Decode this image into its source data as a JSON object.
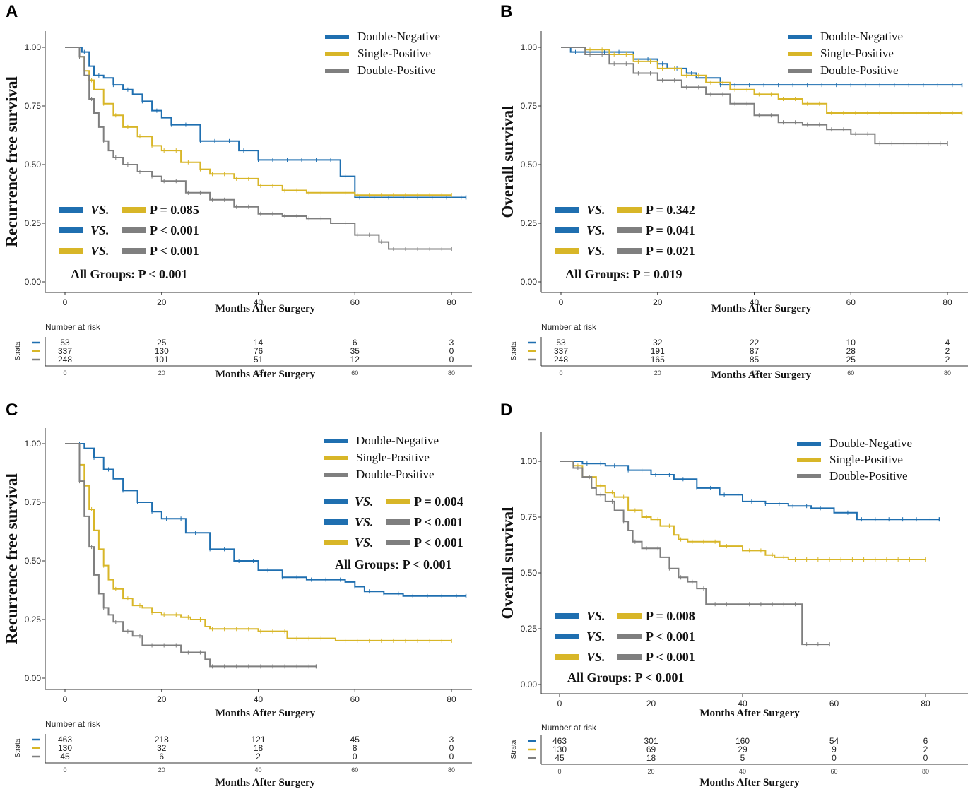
{
  "colors": {
    "double_negative": "#1f6fb0",
    "single_positive": "#d8b628",
    "double_positive": "#7f7f7f",
    "axis": "#333333",
    "text": "#111111"
  },
  "chart_data": [
    {
      "panel": "A",
      "type": "line",
      "subtype": "kaplan-meier",
      "ylabel": "Recurrence free survival",
      "xlabel": "Months After Surgery",
      "xlim": [
        0,
        83
      ],
      "ylim": [
        0,
        1
      ],
      "x_ticks": [
        "0",
        "20",
        "40",
        "60",
        "80"
      ],
      "y_ticks": [
        "0.00",
        "0.25",
        "0.50",
        "0.75",
        "1.00"
      ],
      "legend": [
        "Double-Negative",
        "Single-Positive",
        "Double-Positive"
      ],
      "series": [
        {
          "name": "Double-Negative",
          "x": [
            0,
            3,
            3.5,
            5,
            6,
            8,
            10,
            12,
            14,
            16,
            18,
            20,
            22,
            24,
            28,
            34,
            36,
            40,
            44,
            55,
            57,
            60,
            83
          ],
          "y": [
            1,
            1,
            0.98,
            0.92,
            0.88,
            0.87,
            0.84,
            0.82,
            0.8,
            0.77,
            0.73,
            0.7,
            0.67,
            0.67,
            0.6,
            0.6,
            0.56,
            0.52,
            0.52,
            0.52,
            0.45,
            0.36,
            0.36
          ]
        },
        {
          "name": "Single-Positive",
          "x": [
            0,
            2,
            3,
            4,
            5,
            6,
            8,
            10,
            12,
            15,
            18,
            20,
            24,
            28,
            30,
            35,
            40,
            45,
            50,
            55,
            60,
            80
          ],
          "y": [
            1,
            1,
            0.96,
            0.9,
            0.86,
            0.82,
            0.76,
            0.71,
            0.66,
            0.62,
            0.58,
            0.56,
            0.51,
            0.48,
            0.46,
            0.44,
            0.41,
            0.39,
            0.38,
            0.38,
            0.37,
            0.37
          ]
        },
        {
          "name": "Double-Positive",
          "x": [
            0,
            2,
            3,
            4,
            5,
            6,
            7,
            8,
            9,
            10,
            12,
            15,
            18,
            20,
            25,
            30,
            35,
            40,
            45,
            50,
            55,
            60,
            65,
            67,
            80
          ],
          "y": [
            1,
            1,
            0.96,
            0.88,
            0.78,
            0.72,
            0.66,
            0.6,
            0.56,
            0.53,
            0.5,
            0.47,
            0.45,
            0.43,
            0.38,
            0.35,
            0.32,
            0.29,
            0.28,
            0.27,
            0.25,
            0.2,
            0.17,
            0.14,
            0.14
          ]
        }
      ],
      "p_values": [
        {
          "vs": "VS.",
          "p_label": "P = 0.085"
        },
        {
          "vs": "VS.",
          "p_label": "P < 0.001"
        },
        {
          "vs": "VS.",
          "p_label": "P < 0.001"
        }
      ],
      "all_groups": "All Groups: P < 0.001",
      "risk_table": {
        "title": "Number at risk",
        "strata_label": "Strata",
        "times": [
          "0",
          "20",
          "40",
          "60",
          "80"
        ],
        "rows": [
          [
            "53",
            "25",
            "14",
            "6",
            "3"
          ],
          [
            "337",
            "130",
            "76",
            "35",
            "0"
          ],
          [
            "248",
            "101",
            "51",
            "12",
            "0"
          ]
        ],
        "xlabel": "Months After Surgery"
      }
    },
    {
      "panel": "B",
      "type": "line",
      "subtype": "kaplan-meier",
      "ylabel": "Overall survival",
      "xlabel": "Months After Surgery",
      "xlim": [
        0,
        83
      ],
      "ylim": [
        0,
        1
      ],
      "x_ticks": [
        "0",
        "20",
        "40",
        "60",
        "80"
      ],
      "y_ticks": [
        "0.00",
        "0.25",
        "0.50",
        "0.75",
        "1.00"
      ],
      "legend": [
        "Double-Negative",
        "Single-Positive",
        "Double-Positive"
      ],
      "series": [
        {
          "name": "Double-Negative",
          "x": [
            0,
            2,
            14,
            15,
            20,
            22,
            26,
            28,
            33,
            36,
            60,
            83
          ],
          "y": [
            1,
            0.98,
            0.98,
            0.95,
            0.93,
            0.91,
            0.89,
            0.87,
            0.84,
            0.84,
            0.84,
            0.84
          ]
        },
        {
          "name": "Single-Positive",
          "x": [
            0,
            5,
            10,
            15,
            20,
            25,
            30,
            35,
            40,
            45,
            50,
            55,
            58,
            60,
            83
          ],
          "y": [
            1,
            0.99,
            0.97,
            0.94,
            0.91,
            0.88,
            0.85,
            0.82,
            0.8,
            0.78,
            0.76,
            0.72,
            0.72,
            0.72,
            0.72
          ]
        },
        {
          "name": "Double-Positive",
          "x": [
            0,
            5,
            10,
            15,
            20,
            25,
            30,
            35,
            40,
            45,
            50,
            55,
            60,
            63,
            65,
            80
          ],
          "y": [
            1,
            0.97,
            0.93,
            0.89,
            0.86,
            0.83,
            0.8,
            0.76,
            0.71,
            0.68,
            0.67,
            0.65,
            0.63,
            0.63,
            0.59,
            0.59
          ]
        }
      ],
      "p_values": [
        {
          "vs": "VS.",
          "p_label": "P = 0.342"
        },
        {
          "vs": "VS.",
          "p_label": "P = 0.041"
        },
        {
          "vs": "VS.",
          "p_label": "P = 0.021"
        }
      ],
      "all_groups": "All Groups: P = 0.019",
      "risk_table": {
        "title": "Number at risk",
        "strata_label": "Strata",
        "times": [
          "0",
          "20",
          "40",
          "60",
          "80"
        ],
        "rows": [
          [
            "53",
            "32",
            "22",
            "10",
            "4"
          ],
          [
            "337",
            "191",
            "87",
            "28",
            "2"
          ],
          [
            "248",
            "165",
            "85",
            "25",
            "2"
          ]
        ],
        "xlabel": "Months After Surgery"
      }
    },
    {
      "panel": "C",
      "type": "line",
      "subtype": "kaplan-meier",
      "ylabel": "Recurrence free survival",
      "xlabel": "Months After Surgery",
      "xlim": [
        0,
        83
      ],
      "ylim": [
        0,
        1
      ],
      "x_ticks": [
        "0",
        "20",
        "40",
        "60",
        "80"
      ],
      "y_ticks": [
        "0.00",
        "0.25",
        "0.50",
        "0.75",
        "1.00"
      ],
      "legend": [
        "Double-Negative",
        "Single-Positive",
        "Double-Positive"
      ],
      "series": [
        {
          "name": "Double-Negative",
          "x": [
            0,
            2,
            4,
            6,
            8,
            10,
            12,
            15,
            18,
            20,
            25,
            30,
            35,
            40,
            45,
            50,
            55,
            58,
            60,
            62,
            66,
            70,
            75,
            83
          ],
          "y": [
            1,
            1,
            0.98,
            0.94,
            0.89,
            0.85,
            0.8,
            0.75,
            0.71,
            0.68,
            0.62,
            0.55,
            0.5,
            0.46,
            0.43,
            0.42,
            0.42,
            0.41,
            0.39,
            0.37,
            0.36,
            0.35,
            0.35,
            0.35
          ]
        },
        {
          "name": "Single-Positive",
          "x": [
            0,
            2,
            3,
            4,
            5,
            6,
            7,
            8,
            9,
            10,
            12,
            14,
            16,
            18,
            20,
            24,
            26,
            29,
            30,
            40,
            46,
            50,
            56,
            80
          ],
          "y": [
            1,
            1,
            0.91,
            0.82,
            0.72,
            0.63,
            0.55,
            0.48,
            0.42,
            0.38,
            0.34,
            0.31,
            0.3,
            0.28,
            0.27,
            0.26,
            0.25,
            0.22,
            0.21,
            0.2,
            0.17,
            0.17,
            0.16,
            0.16
          ]
        },
        {
          "name": "Double-Positive",
          "x": [
            0,
            2,
            3,
            4,
            5,
            6,
            7,
            8,
            9,
            10,
            12,
            14,
            16,
            20,
            24,
            29,
            30,
            52
          ],
          "y": [
            1,
            1,
            0.84,
            0.69,
            0.56,
            0.44,
            0.36,
            0.3,
            0.27,
            0.24,
            0.2,
            0.18,
            0.14,
            0.14,
            0.11,
            0.08,
            0.05,
            0.05
          ]
        }
      ],
      "p_values": [
        {
          "vs": "VS.",
          "p_label": "P = 0.004"
        },
        {
          "vs": "VS.",
          "p_label": "P < 0.001"
        },
        {
          "vs": "VS.",
          "p_label": "P < 0.001"
        }
      ],
      "all_groups": "All Groups: P < 0.001",
      "risk_table": {
        "title": "Number at risk",
        "strata_label": "Strata",
        "times": [
          "0",
          "20",
          "40",
          "60",
          "80"
        ],
        "rows": [
          [
            "463",
            "218",
            "121",
            "45",
            "3"
          ],
          [
            "130",
            "32",
            "18",
            "8",
            "0"
          ],
          [
            "45",
            "6",
            "2",
            "0",
            "0"
          ]
        ],
        "xlabel": "Months After Surgery"
      }
    },
    {
      "panel": "D",
      "type": "line",
      "subtype": "kaplan-meier",
      "ylabel": "Overall survival",
      "xlabel": "Months After Surgery",
      "xlim": [
        0,
        83
      ],
      "ylim": [
        0,
        1
      ],
      "x_ticks": [
        "0",
        "20",
        "40",
        "60",
        "80"
      ],
      "y_ticks": [
        "0.00",
        "0.25",
        "0.50",
        "0.75",
        "1.00"
      ],
      "legend": [
        "Double-Negative",
        "Single-Positive",
        "Double-Positive"
      ],
      "series": [
        {
          "name": "Double-Negative",
          "x": [
            0,
            5,
            10,
            15,
            20,
            25,
            30,
            35,
            40,
            45,
            50,
            55,
            60,
            62,
            65,
            70,
            75,
            83
          ],
          "y": [
            1,
            0.99,
            0.98,
            0.96,
            0.94,
            0.92,
            0.88,
            0.85,
            0.82,
            0.81,
            0.8,
            0.79,
            0.77,
            0.77,
            0.74,
            0.74,
            0.74,
            0.74
          ]
        },
        {
          "name": "Single-Positive",
          "x": [
            0,
            3,
            5,
            8,
            10,
            12,
            15,
            18,
            20,
            22,
            25,
            26,
            28,
            30,
            35,
            40,
            45,
            47,
            50,
            80
          ],
          "y": [
            1,
            0.98,
            0.93,
            0.89,
            0.86,
            0.84,
            0.78,
            0.75,
            0.74,
            0.71,
            0.67,
            0.65,
            0.64,
            0.64,
            0.62,
            0.6,
            0.58,
            0.57,
            0.56,
            0.56
          ]
        },
        {
          "name": "Double-Positive",
          "x": [
            0,
            3,
            5,
            7,
            8,
            10,
            12,
            14,
            15,
            16,
            18,
            20,
            22,
            24,
            26,
            28,
            30,
            32,
            40,
            52,
            53,
            59
          ],
          "y": [
            1,
            0.97,
            0.93,
            0.88,
            0.85,
            0.82,
            0.78,
            0.73,
            0.69,
            0.64,
            0.61,
            0.61,
            0.57,
            0.52,
            0.48,
            0.46,
            0.43,
            0.36,
            0.36,
            0.36,
            0.18,
            0.18
          ]
        }
      ],
      "p_values": [
        {
          "vs": "VS.",
          "p_label": "P = 0.008"
        },
        {
          "vs": "VS.",
          "p_label": "P < 0.001"
        },
        {
          "vs": "VS.",
          "p_label": "P < 0.001"
        }
      ],
      "all_groups": "All Groups: P < 0.001",
      "risk_table": {
        "title": "Number at risk",
        "strata_label": "Strata",
        "times": [
          "0",
          "20",
          "40",
          "60",
          "80"
        ],
        "rows": [
          [
            "463",
            "301",
            "160",
            "54",
            "6"
          ],
          [
            "130",
            "69",
            "29",
            "9",
            "2"
          ],
          [
            "45",
            "18",
            "5",
            "0",
            "0"
          ]
        ],
        "xlabel": "Months After Surgery"
      }
    }
  ]
}
